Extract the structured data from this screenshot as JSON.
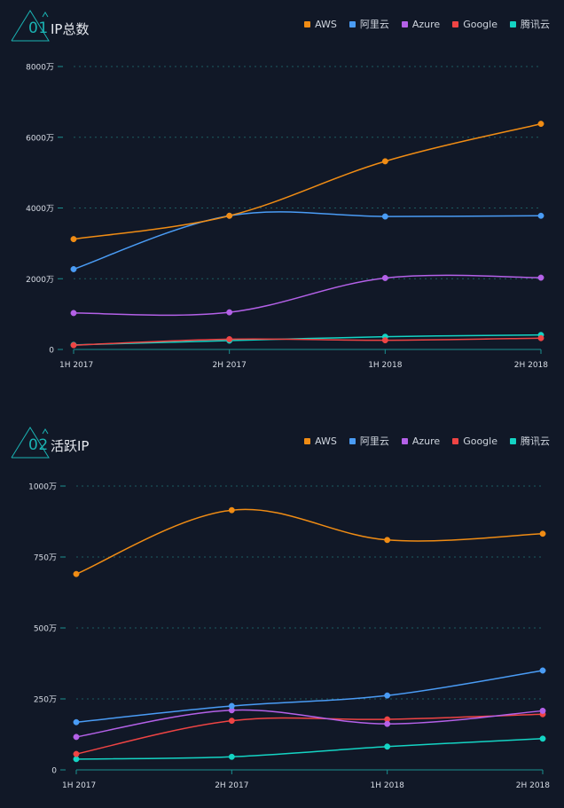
{
  "legend": [
    {
      "name": "AWS",
      "color": "#f08c14"
    },
    {
      "name": "阿里云",
      "color": "#4a9cf5"
    },
    {
      "name": "Azure",
      "color": "#b461e8"
    },
    {
      "name": "Google",
      "color": "#ef4444"
    },
    {
      "name": "腾讯云",
      "color": "#14d4c4"
    }
  ],
  "panels": [
    {
      "number": "01",
      "title": "IP总数"
    },
    {
      "number": "02",
      "title": "活跃IP"
    }
  ],
  "chart_data": [
    {
      "type": "line",
      "title": "IP总数",
      "categories": [
        "1H 2017",
        "2H 2017",
        "1H 2018",
        "2H 2018"
      ],
      "ylim": [
        0,
        8000
      ],
      "yticks": [
        0,
        2000,
        4000,
        6000,
        8000
      ],
      "ytick_labels": [
        "0",
        "2000万",
        "4000万",
        "6000万",
        "8000万"
      ],
      "grid": true,
      "legend_position": "top-right",
      "series": [
        {
          "name": "AWS",
          "color": "#f08c14",
          "values": [
            3120,
            3780,
            5320,
            6380
          ]
        },
        {
          "name": "阿里云",
          "color": "#4a9cf5",
          "values": [
            2270,
            3780,
            3760,
            3780
          ]
        },
        {
          "name": "Azure",
          "color": "#b461e8",
          "values": [
            1030,
            1050,
            2020,
            2030
          ]
        },
        {
          "name": "Google",
          "color": "#ef4444",
          "values": [
            120,
            290,
            260,
            320
          ]
        },
        {
          "name": "腾讯云",
          "color": "#14d4c4",
          "values": [
            130,
            250,
            360,
            410
          ]
        }
      ]
    },
    {
      "type": "line",
      "title": "活跃IP",
      "categories": [
        "1H 2017",
        "2H 2017",
        "1H 2018",
        "2H 2018"
      ],
      "ylim": [
        0,
        1000
      ],
      "yticks": [
        0,
        250,
        500,
        750,
        1000
      ],
      "ytick_labels": [
        "0",
        "250万",
        "500万",
        "750万",
        "1000万"
      ],
      "grid": true,
      "legend_position": "top-right",
      "series": [
        {
          "name": "AWS",
          "color": "#f08c14",
          "values": [
            690,
            915,
            810,
            832
          ]
        },
        {
          "name": "阿里云",
          "color": "#4a9cf5",
          "values": [
            168,
            225,
            262,
            350
          ]
        },
        {
          "name": "Azure",
          "color": "#b461e8",
          "values": [
            116,
            210,
            162,
            208
          ]
        },
        {
          "name": "Google",
          "color": "#ef4444",
          "values": [
            56,
            173,
            178,
            196
          ]
        },
        {
          "name": "腾讯云",
          "color": "#14d4c4",
          "values": [
            38,
            46,
            82,
            110
          ]
        }
      ]
    }
  ]
}
